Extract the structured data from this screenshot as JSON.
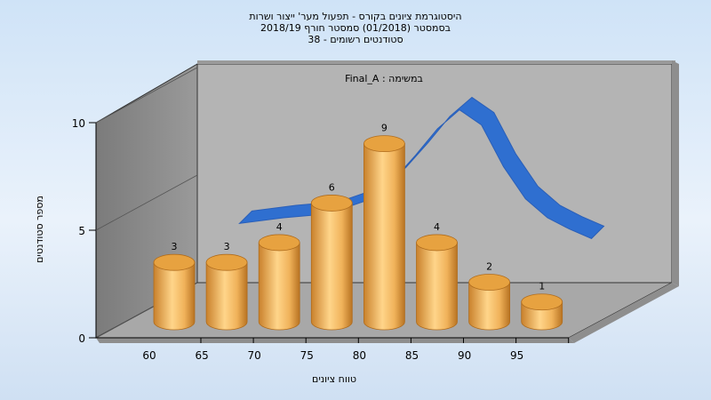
{
  "title": {
    "line1": "היסטוגרמת ציונים בקורס - תפעול מער' ייצור ושרות",
    "line2": "בסמסטר  (01/2018)  סמסטר חורף 2018/19",
    "line3": "סטודנטים רשומים - 38"
  },
  "chart_data": {
    "type": "bar",
    "task_label": "Final_A : במשימה",
    "xlabel": "טווח ציונים",
    "ylabel": "מספר סטודנטים",
    "categories": [
      "60",
      "65",
      "70",
      "75",
      "80",
      "85",
      "90",
      "95"
    ],
    "values": [
      3,
      3,
      4,
      6,
      9,
      4,
      2,
      1
    ],
    "ylim": [
      0,
      10
    ],
    "yticks": [
      "0",
      "5",
      "10"
    ],
    "curve": {
      "x": [
        60,
        65,
        70,
        75,
        77.5,
        80,
        82.5,
        85,
        87.5,
        90,
        92.5,
        95,
        97.5,
        100
      ],
      "y": [
        3.6,
        3.9,
        4.1,
        4.9,
        5.9,
        7.2,
        8.6,
        9.6,
        8.8,
        6.6,
        4.9,
        3.9,
        3.3,
        2.8
      ]
    },
    "grid": false,
    "legend": "none",
    "bar_color": "#e9a53f",
    "curve_color": "#2f6fd0"
  }
}
